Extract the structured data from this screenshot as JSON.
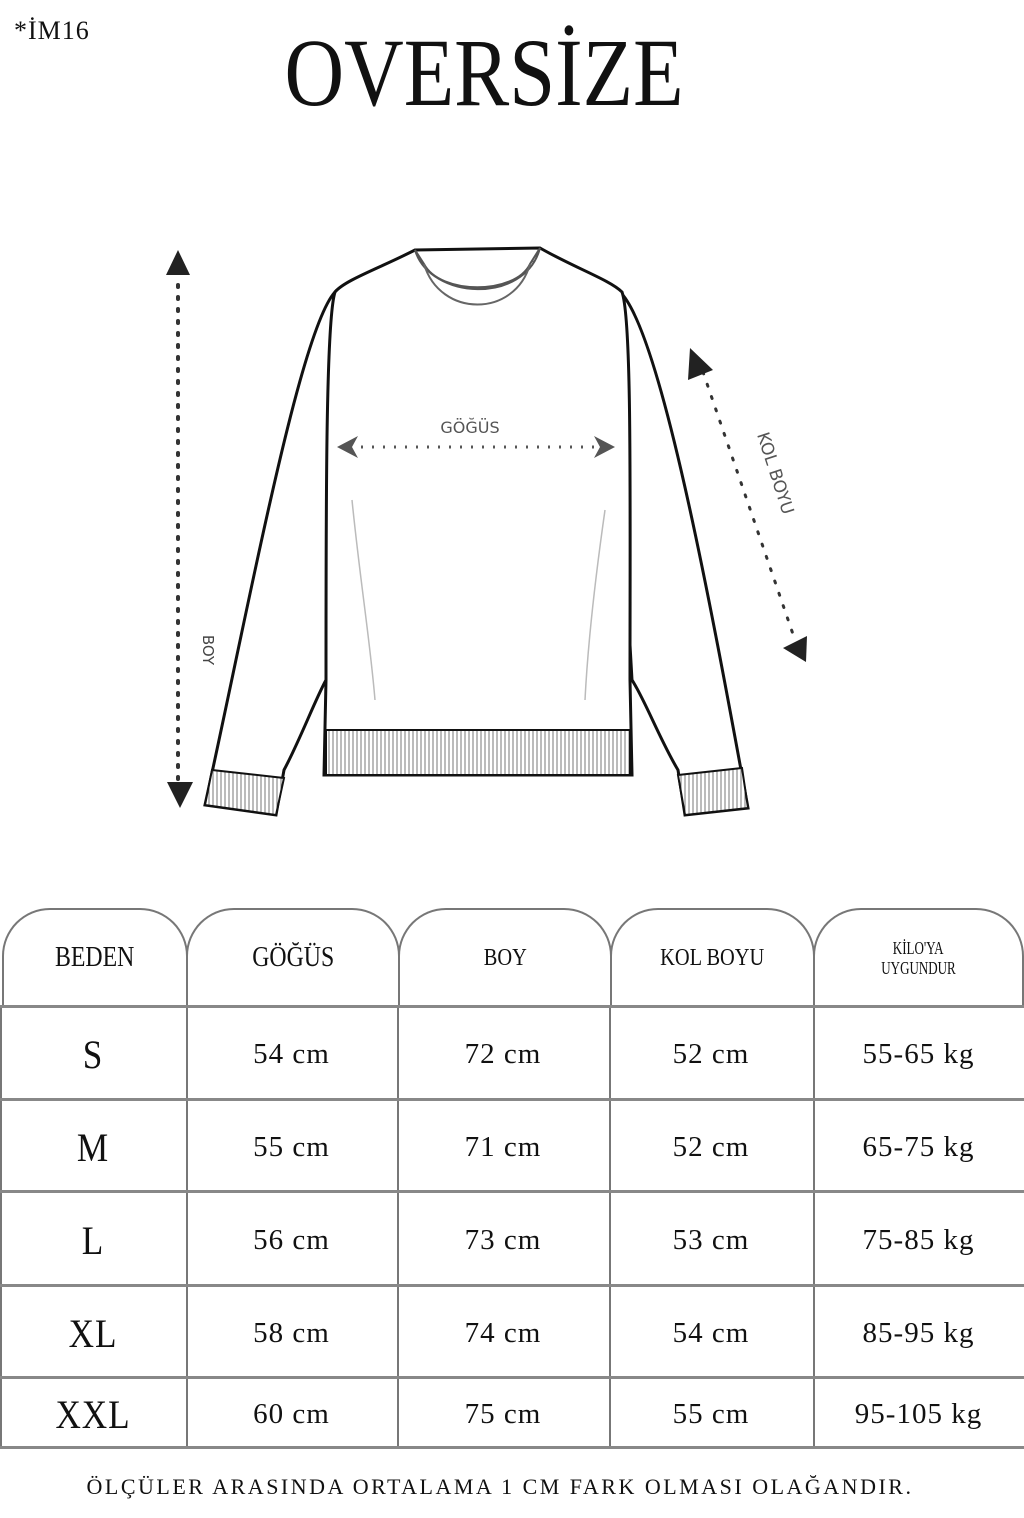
{
  "code": "*İM16",
  "title": "OVERSİZE",
  "figure": {
    "chest_label": "GÖĞÜS",
    "length_label": "BOY",
    "sleeve_label": "KOL BOYU"
  },
  "table": {
    "headers": [
      "BEDEN",
      "GÖĞÜS",
      "BOY",
      "KOL BOYU",
      "KİLO'YA UYGUNDUR"
    ],
    "header_weight_lines": [
      "KİLO'YA",
      "UYGUNDUR"
    ],
    "rows": [
      [
        "S",
        "54 cm",
        "72 cm",
        "52  cm",
        "55-65 kg"
      ],
      [
        "M",
        "55 cm",
        "71 cm",
        "52 cm",
        "65-75 kg"
      ],
      [
        "L",
        "56 cm",
        "73 cm",
        "53 cm",
        "75-85 kg"
      ],
      [
        "XL",
        "58 cm",
        "74 cm",
        "54 cm",
        "85-95 kg"
      ],
      [
        "XXL",
        "60 cm",
        "75 cm",
        "55 cm",
        "95-105 kg"
      ]
    ]
  },
  "note": "ÖLÇÜLER ARASINDA ORTALAMA 1 CM FARK OLMASI OLAĞANDIR."
}
